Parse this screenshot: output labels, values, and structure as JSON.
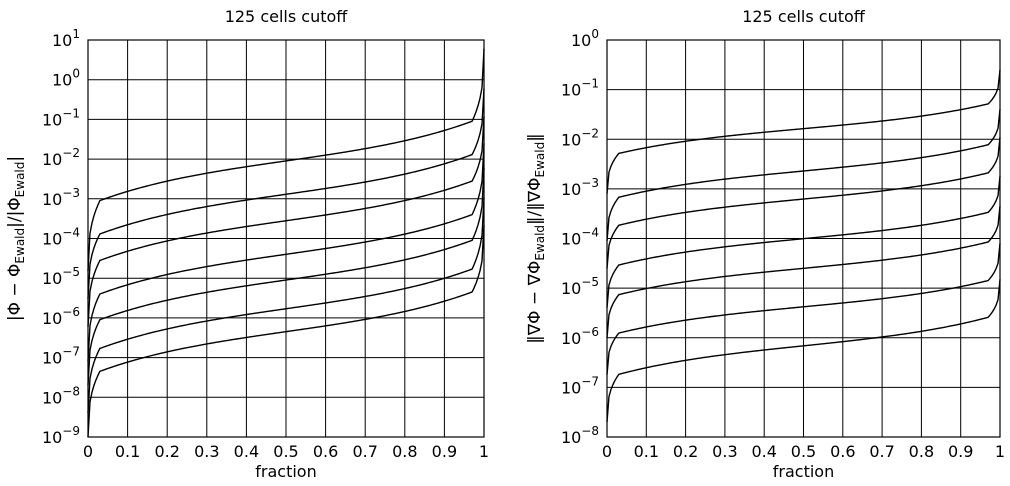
{
  "chart_data": [
    {
      "type": "line",
      "title": "125 cells cutoff",
      "xlabel": "fraction",
      "ylabel": "|Φ − Φ_Ewald|/|Φ_Ewald|",
      "ylabel_parts": [
        "|Φ − Φ",
        "Ewald",
        "|/|Φ",
        "Ewald",
        "|"
      ],
      "yscale": "log",
      "xlim": [
        0,
        1
      ],
      "ylim": [
        1e-09,
        10
      ],
      "grid": true,
      "x_ticks": [
        "0",
        "0.1",
        "0.2",
        "0.3",
        "0.4",
        "0.5",
        "0.6",
        "0.7",
        "0.8",
        "0.9",
        "1"
      ],
      "y_ticks": [
        "-9",
        "-8",
        "-7",
        "-6",
        "-5",
        "-4",
        "-3",
        "-2",
        "-1",
        "0",
        "1"
      ],
      "series": [
        {
          "median": 0.009,
          "min": 1.5e-05,
          "max": 6
        },
        {
          "median": 0.0013,
          "min": 3e-06,
          "max": 0.6
        },
        {
          "median": 0.00028,
          "min": 6e-07,
          "max": 0.12
        },
        {
          "median": 4e-05,
          "min": 8e-08,
          "max": 0.025
        },
        {
          "median": 9e-06,
          "min": 2e-08,
          "max": 0.006
        },
        {
          "median": 1.7e-06,
          "min": 4e-09,
          "max": 0.0011
        },
        {
          "median": 4.5e-07,
          "min": 1e-09,
          "max": 0.00022
        }
      ]
    },
    {
      "type": "line",
      "title": "125 cells cutoff",
      "xlabel": "fraction",
      "ylabel": "‖∇Φ − ∇Φ_Ewald‖/‖∇Φ_Ewald‖",
      "ylabel_parts": [
        "‖∇Φ − ∇Φ",
        "Ewald",
        "‖/‖∇Φ",
        "Ewald",
        "‖"
      ],
      "yscale": "log",
      "xlim": [
        0,
        1
      ],
      "ylim": [
        1e-08,
        1
      ],
      "grid": true,
      "x_ticks": [
        "0",
        "0.1",
        "0.2",
        "0.3",
        "0.4",
        "0.5",
        "0.6",
        "0.7",
        "0.8",
        "0.9",
        "1"
      ],
      "y_ticks": [
        "-8",
        "-7",
        "-6",
        "-5",
        "-4",
        "-3",
        "-2",
        "-1",
        "0"
      ],
      "series": [
        {
          "median": 0.018,
          "min": 0.0008,
          "max": 0.25
        },
        {
          "median": 0.0026,
          "min": 9e-05,
          "max": 0.04
        },
        {
          "median": 0.0007,
          "min": 2.5e-05,
          "max": 0.011
        },
        {
          "median": 0.00011,
          "min": 4e-06,
          "max": 0.0018
        },
        {
          "median": 2.8e-05,
          "min": 1e-06,
          "max": 0.00045
        },
        {
          "median": 4.5e-06,
          "min": 1.8e-07,
          "max": 8e-05
        },
        {
          "median": 8e-07,
          "min": 2e-08,
          "max": 1.5e-05
        }
      ]
    }
  ]
}
